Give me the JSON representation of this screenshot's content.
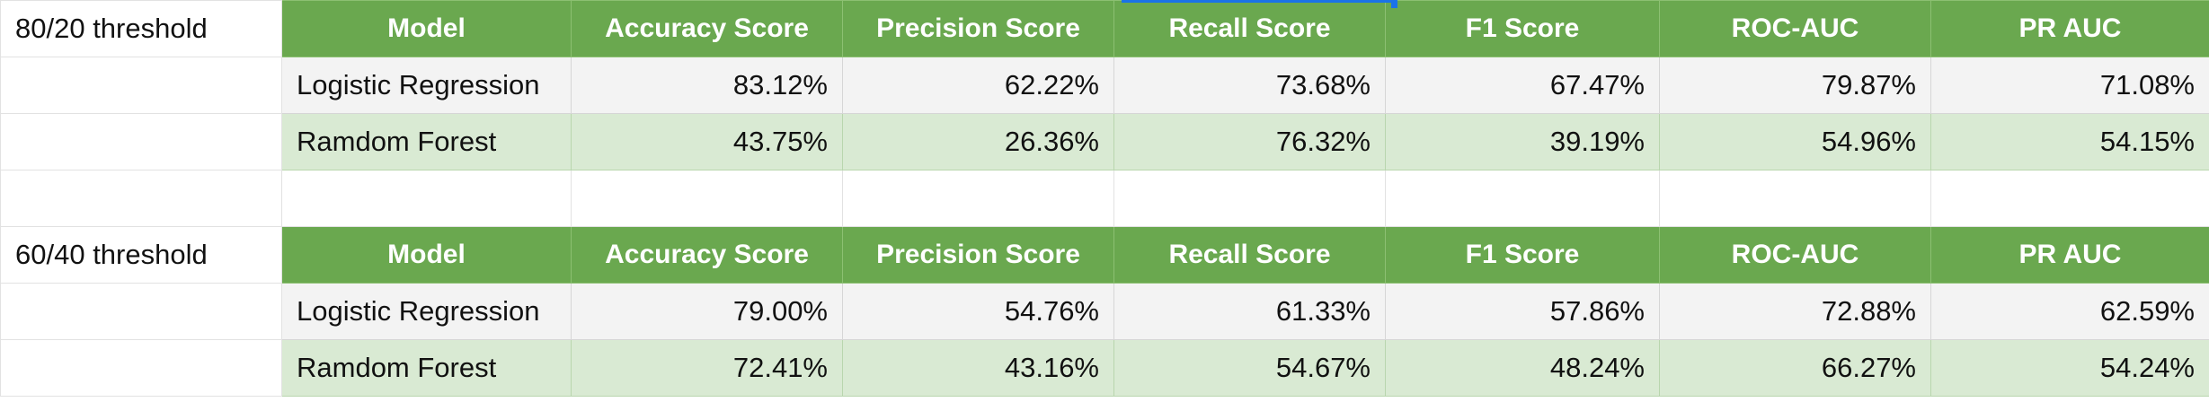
{
  "accent_colors": {
    "header_green": "#6aa84f",
    "row_green": "#d9ead3",
    "row_light": "#f3f3f3",
    "selection_blue": "#1a73e8"
  },
  "headers": [
    "Model",
    "Accuracy Score",
    "Precision Score",
    "Recall Score",
    "F1 Score",
    "ROC-AUC",
    "PR AUC"
  ],
  "blocks": [
    {
      "label": "80/20 threshold",
      "rows": [
        {
          "model": "Logistic Regression",
          "values": [
            "83.12%",
            "62.22%",
            "73.68%",
            "67.47%",
            "79.87%",
            "71.08%"
          ]
        },
        {
          "model": "Ramdom Forest",
          "values": [
            "43.75%",
            "26.36%",
            "76.32%",
            "39.19%",
            "54.96%",
            "54.15%"
          ]
        }
      ]
    },
    {
      "label": "60/40 threshold",
      "rows": [
        {
          "model": "Logistic Regression",
          "values": [
            "79.00%",
            "54.76%",
            "61.33%",
            "57.86%",
            "72.88%",
            "62.59%"
          ]
        },
        {
          "model": "Ramdom Forest",
          "values": [
            "72.41%",
            "43.16%",
            "54.67%",
            "48.24%",
            "66.27%",
            "54.24%"
          ]
        }
      ]
    }
  ]
}
